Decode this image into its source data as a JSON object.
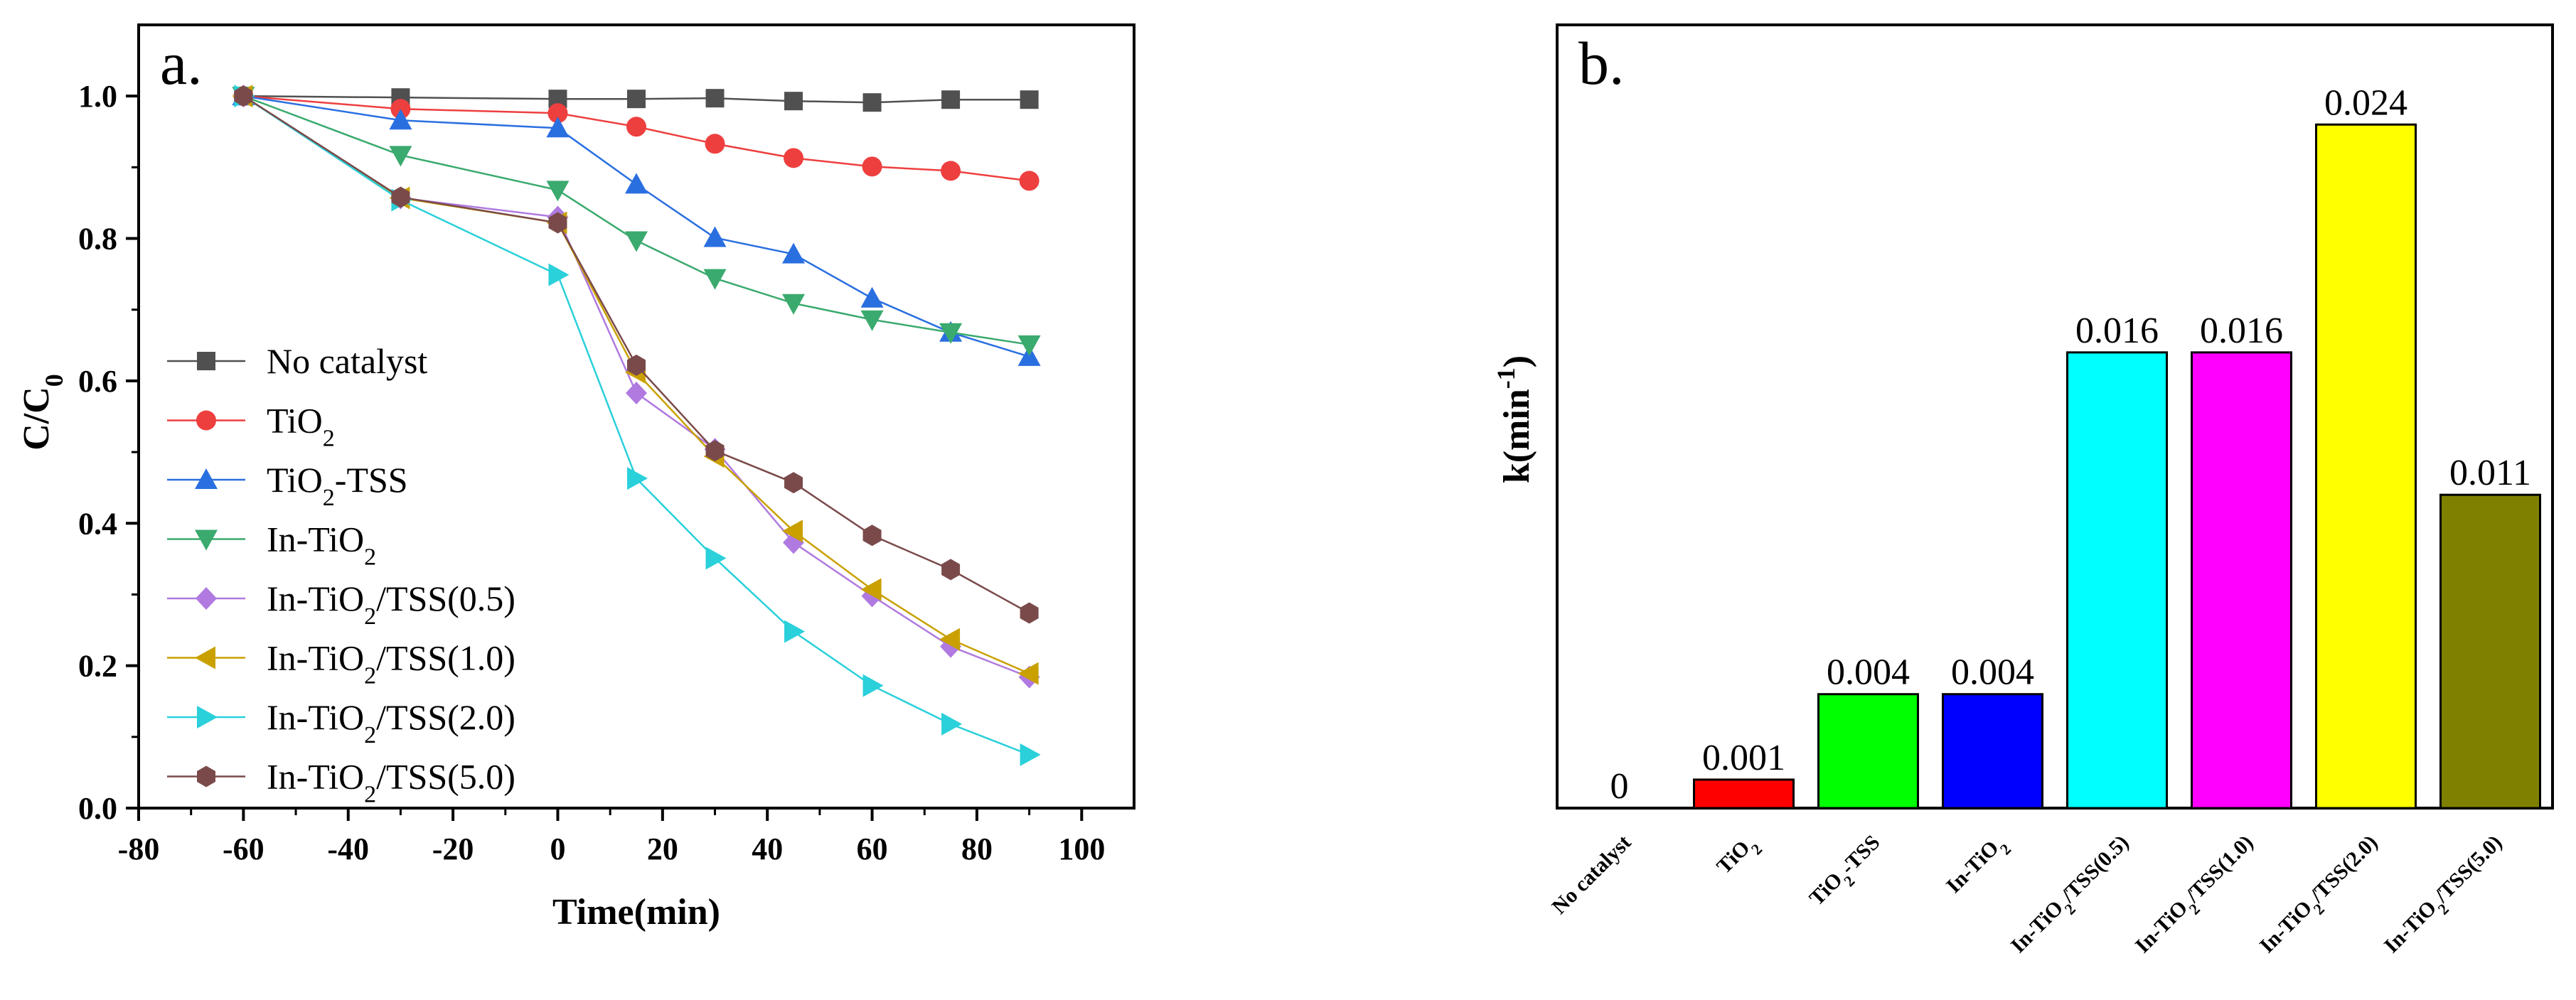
{
  "colors": {
    "no_catalyst": "#505050",
    "tio2": "#ee3f3f",
    "tio2_tss": "#2a6fe0",
    "in_tio2": "#3aaa6e",
    "in_tio2_tss_05": "#b07ae0",
    "in_tio2_tss_10": "#c9a000",
    "in_tio2_tss_20": "#2ad0da",
    "in_tio2_tss_50": "#7a4a4a"
  },
  "chart_data": [
    {
      "panel_label": "a.",
      "type": "line",
      "xlabel": "Time(min)",
      "ylabel": {
        "main": "C/C",
        "sub": "0"
      },
      "xlim": [
        -80,
        110
      ],
      "ylim": [
        0.0,
        1.1
      ],
      "xticks": [
        -80,
        -60,
        -40,
        -20,
        0,
        20,
        40,
        60,
        80,
        100
      ],
      "yticks": [
        0.0,
        0.2,
        0.4,
        0.6,
        0.8,
        1.0
      ],
      "xtick_labels": [
        "-80",
        "-60",
        "-40",
        "-20",
        "0",
        "20",
        "40",
        "60",
        "80",
        "100"
      ],
      "ytick_labels": [
        "0.0",
        "0.2",
        "0.4",
        "0.6",
        "0.8",
        "1.0"
      ],
      "x": [
        -60,
        -30,
        0,
        15,
        30,
        45,
        60,
        75,
        90
      ],
      "series": [
        {
          "name": "No catalyst",
          "label": {
            "a": "No catalyst",
            "sub": "",
            "b": ""
          },
          "marker": "square",
          "color_key": "no_catalyst",
          "values": [
            1.0,
            0.998,
            0.996,
            0.996,
            0.997,
            0.993,
            0.991,
            0.995,
            0.995
          ]
        },
        {
          "name": "TiO2",
          "label": {
            "a": "TiO",
            "sub": "2",
            "b": ""
          },
          "marker": "circle",
          "color_key": "tio2",
          "values": [
            1.0,
            0.982,
            0.976,
            0.957,
            0.933,
            0.913,
            0.901,
            0.895,
            0.881
          ]
        },
        {
          "name": "TiO2-TSS",
          "label": {
            "a": "TiO",
            "sub": "2",
            "b": "-TSS"
          },
          "marker": "triangle-up",
          "color_key": "tio2_tss",
          "values": [
            1.0,
            0.966,
            0.955,
            0.876,
            0.801,
            0.778,
            0.716,
            0.668,
            0.634
          ]
        },
        {
          "name": "In-TiO2",
          "label": {
            "a": "In-TiO",
            "sub": "2",
            "b": ""
          },
          "marker": "triangle-down",
          "color_key": "in_tio2",
          "values": [
            1.0,
            0.917,
            0.868,
            0.797,
            0.744,
            0.709,
            0.686,
            0.668,
            0.651
          ]
        },
        {
          "name": "In-TiO2/TSS(0.5)",
          "label": {
            "a": "In-TiO",
            "sub": "2",
            "b": "/TSS(0.5)"
          },
          "marker": "diamond",
          "color_key": "in_tio2_tss_05",
          "values": [
            1.0,
            0.857,
            0.83,
            0.583,
            0.504,
            0.373,
            0.298,
            0.227,
            0.184
          ]
        },
        {
          "name": "In-TiO2/TSS(1.0)",
          "label": {
            "a": "In-TiO",
            "sub": "2",
            "b": "/TSS(1.0)"
          },
          "marker": "triangle-left",
          "color_key": "in_tio2_tss_10",
          "values": [
            1.0,
            0.857,
            0.822,
            0.612,
            0.494,
            0.389,
            0.307,
            0.237,
            0.189
          ]
        },
        {
          "name": "In-TiO2/TSS(2.0)",
          "label": {
            "a": "In-TiO",
            "sub": "2",
            "b": "/TSS(2.0)"
          },
          "marker": "triangle-right",
          "color_key": "in_tio2_tss_20",
          "values": [
            1.0,
            0.854,
            0.749,
            0.463,
            0.351,
            0.248,
            0.172,
            0.118,
            0.075
          ]
        },
        {
          "name": "In-TiO2/TSS(5.0)",
          "label": {
            "a": "In-TiO",
            "sub": "2",
            "b": "/TSS(5.0)"
          },
          "marker": "hexagon",
          "color_key": "in_tio2_tss_50",
          "values": [
            1.0,
            0.858,
            0.822,
            0.622,
            0.502,
            0.457,
            0.383,
            0.335,
            0.274
          ]
        }
      ],
      "legend_position": "center-left"
    },
    {
      "panel_label": "b.",
      "type": "bar",
      "ylabel": {
        "main": "k(min",
        "sup": "-1",
        "end": ")"
      },
      "ylim": [
        0,
        0.0275
      ],
      "categories": [
        {
          "name": "No catalyst",
          "a": "No catalyst",
          "sub": "",
          "b": "",
          "color": "#ffffff"
        },
        {
          "name": "TiO2",
          "a": "TiO",
          "sub": "2",
          "b": "",
          "color": "#ff0000"
        },
        {
          "name": "TiO2-TSS",
          "a": "TiO",
          "sub": "2",
          "b": "-TSS",
          "color": "#00ff00"
        },
        {
          "name": "In-TiO2",
          "a": "In-TiO",
          "sub": "2",
          "b": "",
          "color": "#0000ff"
        },
        {
          "name": "In-TiO2/TSS(0.5)",
          "a": "In-TiO",
          "sub": "2",
          "b": "/TSS(0.5)",
          "color": "#00ffff"
        },
        {
          "name": "In-TiO2/TSS(1.0)",
          "a": "In-TiO",
          "sub": "2",
          "b": "/TSS(1.0)",
          "color": "#ff00ff"
        },
        {
          "name": "In-TiO2/TSS(2.0)",
          "a": "In-TiO",
          "sub": "2",
          "b": "/TSS(2.0)",
          "color": "#ffff00"
        },
        {
          "name": "In-TiO2/TSS(5.0)",
          "a": "In-TiO",
          "sub": "2",
          "b": "/TSS(5.0)",
          "color": "#808000"
        }
      ],
      "values": [
        0,
        0.001,
        0.004,
        0.004,
        0.016,
        0.016,
        0.024,
        0.011
      ],
      "bar_plot_values": [
        0,
        0.001,
        0.004,
        0.004,
        0.016,
        0.016,
        0.024,
        0.011
      ],
      "value_labels": [
        "0",
        "0.001",
        "0.004",
        "0.004",
        "0.016",
        "0.016",
        "0.024",
        "0.011"
      ]
    }
  ]
}
